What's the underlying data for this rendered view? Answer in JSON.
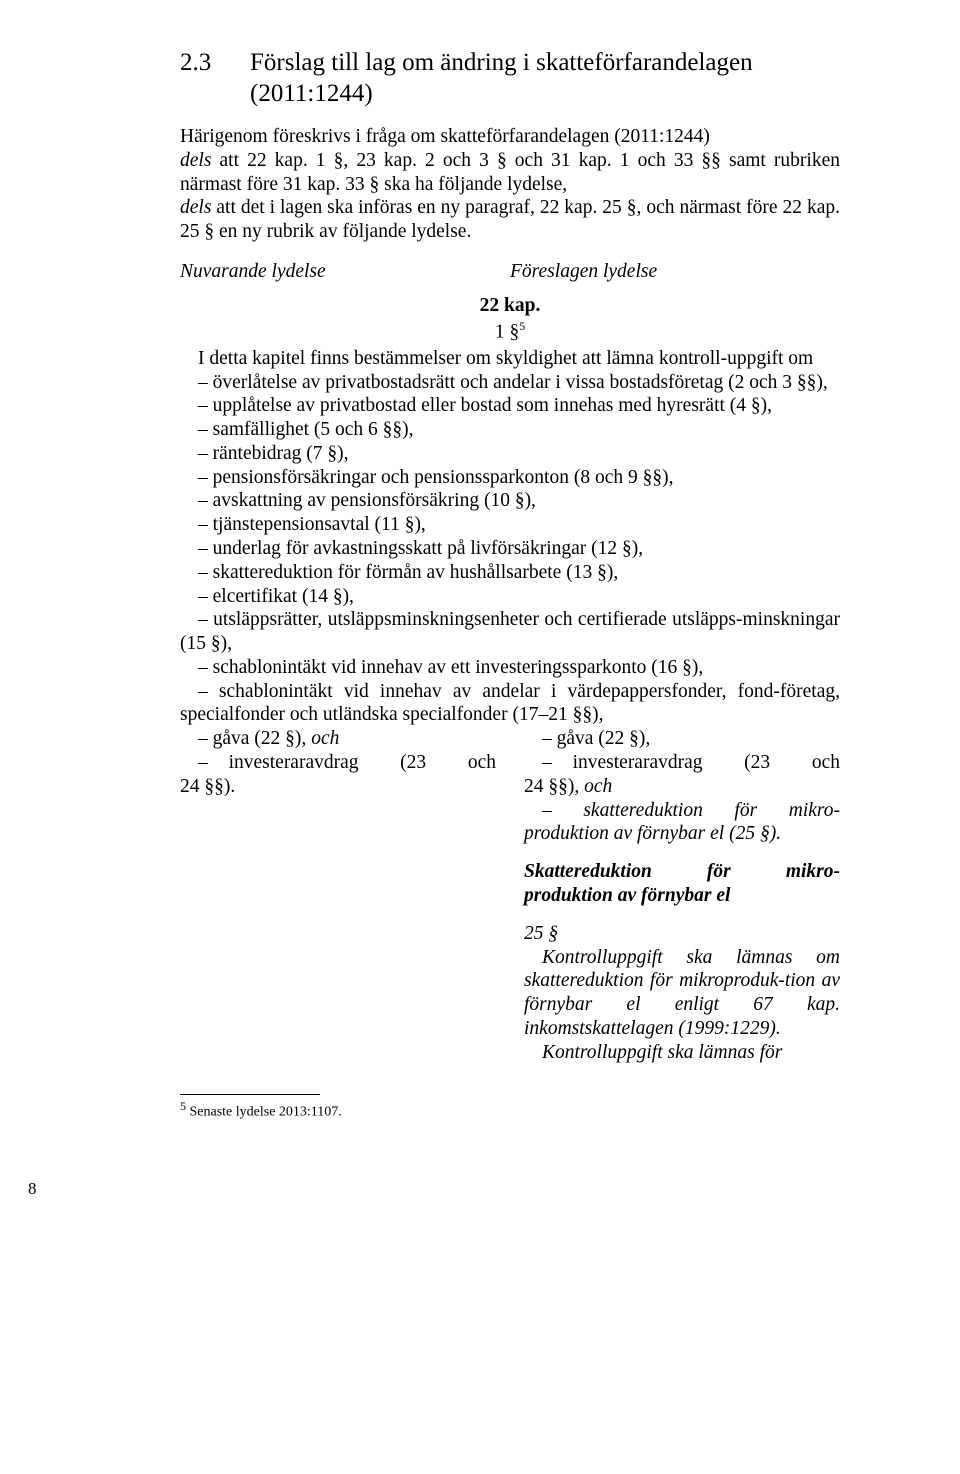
{
  "section": {
    "number": "2.3",
    "title": "Förslag till lag om ändring i skatteförfarandelagen (2011:1244)"
  },
  "intro": "Härigenom föreskrivs i fråga om skatteförfarandelagen (2011:1244) dels att 22 kap. 1 §, 23 kap. 2 och 3 § och 31 kap. 1 och 33 §§ samt rubriken närmast före 31 kap. 33 § ska ha följande lydelse, dels att det i lagen ska införas en ny paragraf, 22 kap. 25 §, och närmast före 22 kap. 25 § en ny rubrik av följande lydelse.",
  "intro_words": {
    "dels1": "dels",
    "dels2": "dels"
  },
  "columns": {
    "left": "Nuvarande lydelse",
    "right": "Föreslagen lydelse"
  },
  "kap": {
    "title": "22 kap.",
    "para": "1 §",
    "sup": "5"
  },
  "body": {
    "p0": "I detta kapitel finns bestämmelser om skyldighet att lämna kontroll-uppgift om",
    "p1": "– överlåtelse av privatbostadsrätt och andelar i vissa bostadsföretag (2 och 3 §§),",
    "p2": "– upplåtelse av privatbostad eller bostad som innehas med hyresrätt (4 §),",
    "p3": "– samfällighet (5 och 6 §§),",
    "p4": "– räntebidrag (7 §),",
    "p5": "– pensionsförsäkringar och pensionssparkonton (8 och 9 §§),",
    "p6": "– avskattning av pensionsförsäkring (10 §),",
    "p7": "– tjänstepensionsavtal (11 §),",
    "p8": "– underlag för avkastningsskatt på livförsäkringar (12 §),",
    "p9": "– skattereduktion för förmån av hushållsarbete (13 §),",
    "p10": "– elcertifikat (14 §),",
    "p11": "– utsläppsrätter, utsläppsminskningsenheter och certifierade utsläpps-minskningar (15 §),",
    "p12": "– schablonintäkt vid innehav av ett investeringssparkonto (16 §),",
    "p13": "– schablonintäkt vid innehav av andelar i värdepappersfonder, fond-företag, specialfonder och utländska specialfonder (17–21 §§),"
  },
  "left_col": {
    "l1a": "– gåva (22 §), ",
    "l1b": "och",
    "l2": "– investeraravdrag (23 och 24 §§)."
  },
  "right_col": {
    "r1": "– gåva (22 §),",
    "r2a": "– investeraravdrag (23 och 24 §§)",
    "r2b": ", och",
    "r3a": "– skattereduktion för mikro-produktion av förnybar el (25 §).",
    "heading": "Skattereduktion för mikro-produktion av förnybar el",
    "r25": "25 §",
    "r4": "Kontrolluppgift ska lämnas om skattereduktion för mikroproduk-tion av förnybar el enligt 67 kap. inkomstskattelagen (1999:1229).",
    "r5": "Kontrolluppgift ska lämnas för"
  },
  "footnote": {
    "sup": "5",
    "text": " Senaste lydelse 2013:1107."
  },
  "page_number": "8"
}
